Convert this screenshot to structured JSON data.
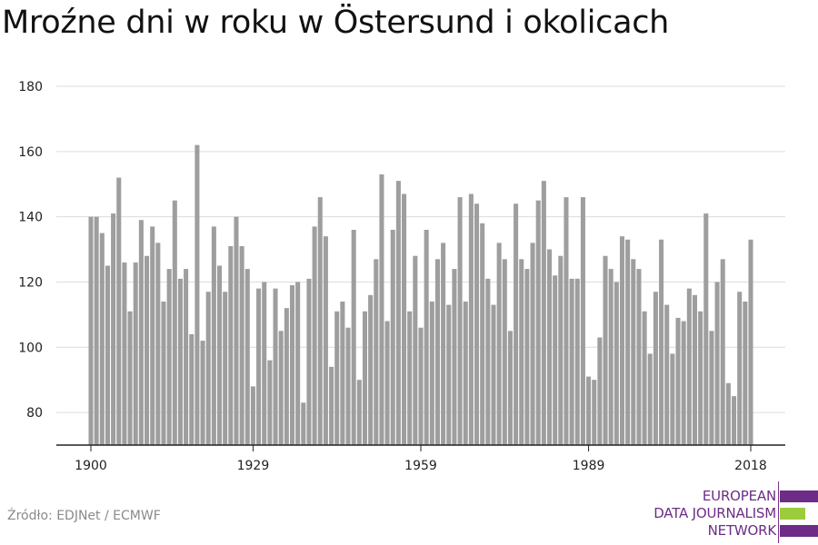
{
  "title": "Mroźne dni w roku w Östersund i okolicach",
  "source": "Źródło: EDJNet / ECMWF",
  "logo": {
    "lines": [
      "EUROPEAN",
      "DATA JOURNALISM",
      "NETWORK"
    ],
    "colors": {
      "purple": "#6d2d86",
      "green": "#9ccc3c"
    }
  },
  "chart_data": {
    "type": "bar",
    "bar_color": "#9e9e9e",
    "x": [
      1900,
      1901,
      1902,
      1903,
      1904,
      1905,
      1906,
      1907,
      1908,
      1909,
      1910,
      1911,
      1912,
      1913,
      1914,
      1915,
      1916,
      1917,
      1918,
      1919,
      1920,
      1921,
      1922,
      1923,
      1924,
      1925,
      1926,
      1927,
      1928,
      1929,
      1930,
      1931,
      1932,
      1933,
      1934,
      1935,
      1936,
      1937,
      1938,
      1939,
      1940,
      1941,
      1942,
      1943,
      1944,
      1945,
      1946,
      1947,
      1948,
      1949,
      1950,
      1951,
      1952,
      1953,
      1954,
      1955,
      1956,
      1957,
      1958,
      1959,
      1960,
      1961,
      1962,
      1963,
      1964,
      1965,
      1966,
      1967,
      1968,
      1969,
      1970,
      1971,
      1972,
      1973,
      1974,
      1975,
      1976,
      1977,
      1978,
      1979,
      1980,
      1981,
      1982,
      1983,
      1984,
      1985,
      1986,
      1987,
      1988,
      1989,
      1990,
      1991,
      1992,
      1993,
      1994,
      1995,
      1996,
      1997,
      1998,
      1999,
      2000,
      2001,
      2002,
      2003,
      2004,
      2005,
      2006,
      2007,
      2008,
      2009,
      2010,
      2011,
      2012,
      2013,
      2014,
      2015,
      2016,
      2017,
      2018
    ],
    "values": [
      140,
      140,
      135,
      125,
      141,
      152,
      126,
      111,
      126,
      139,
      128,
      137,
      132,
      114,
      124,
      145,
      121,
      124,
      104,
      162,
      102,
      117,
      137,
      125,
      117,
      131,
      140,
      131,
      124,
      88,
      118,
      120,
      96,
      118,
      105,
      112,
      119,
      120,
      83,
      121,
      137,
      146,
      134,
      94,
      111,
      114,
      106,
      136,
      90,
      111,
      116,
      127,
      153,
      108,
      136,
      151,
      147,
      111,
      128,
      106,
      136,
      114,
      127,
      132,
      113,
      124,
      146,
      114,
      147,
      144,
      138,
      121,
      113,
      132,
      127,
      105,
      144,
      127,
      124,
      132,
      145,
      151,
      130,
      122,
      128,
      146,
      121,
      121,
      146,
      91,
      90,
      103,
      128,
      124,
      120,
      134,
      133,
      127,
      124,
      111,
      98,
      117,
      133,
      113,
      98,
      109,
      108,
      118,
      116,
      111,
      141,
      105,
      120,
      127,
      89,
      85,
      117,
      114,
      133
    ],
    "x_ticks": [
      "1900",
      "1929",
      "1959",
      "1989",
      "2018"
    ],
    "y_ticks": [
      "80",
      "100",
      "120",
      "140",
      "160",
      "180"
    ],
    "ylim": [
      70,
      180
    ],
    "grid": true,
    "legend": "none",
    "xlabel": "",
    "ylabel": ""
  }
}
